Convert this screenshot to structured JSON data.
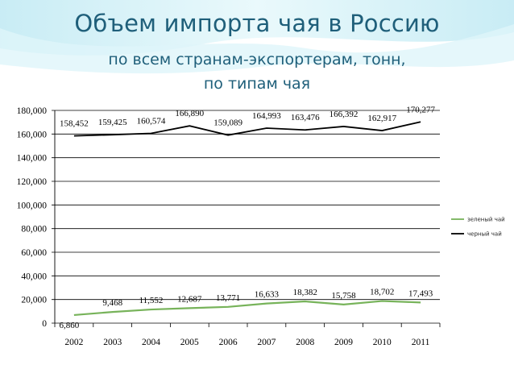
{
  "slide": {
    "title": "Объем импорта чая в Россию",
    "subtitle_line1": "по всем странам-экспортерам, тонн,",
    "subtitle_line2": "по типам чая"
  },
  "colors": {
    "title": "#1f5f7a",
    "green_series": "#77b35a",
    "black_series": "#000000",
    "grid": "#000000",
    "bg_accent": "#cfeef6"
  },
  "chart_data": {
    "type": "line",
    "x": [
      "2002",
      "2003",
      "2004",
      "2005",
      "2006",
      "2007",
      "2008",
      "2009",
      "2010",
      "2011"
    ],
    "ylim": [
      0,
      180000
    ],
    "yticks": [
      0,
      20000,
      40000,
      60000,
      80000,
      100000,
      120000,
      140000,
      160000,
      180000
    ],
    "ytick_labels": [
      "0",
      "20,000",
      "40,000",
      "60,000",
      "80,000",
      "100,000",
      "120,000",
      "140,000",
      "160,000",
      "180,000"
    ],
    "grid": true,
    "legend_position": "right",
    "series": [
      {
        "name": "зеленый чай",
        "color": "#77b35a",
        "values": [
          6860,
          9468,
          11552,
          12687,
          13771,
          16633,
          18382,
          15758,
          18702,
          17493
        ],
        "labels": [
          "6,860",
          "9,468",
          "11,552",
          "12,687",
          "13,771",
          "16,633",
          "18,382",
          "15,758",
          "18,702",
          "17,493"
        ]
      },
      {
        "name": "черный чай",
        "color": "#000000",
        "values": [
          158452,
          159425,
          160574,
          166890,
          159089,
          164993,
          163476,
          166392,
          162917,
          170277
        ],
        "labels": [
          "158,452",
          "159,425",
          "160,574",
          "166,890",
          "159,089",
          "164,993",
          "163,476",
          "166,392",
          "162,917",
          "170,277"
        ]
      }
    ]
  }
}
